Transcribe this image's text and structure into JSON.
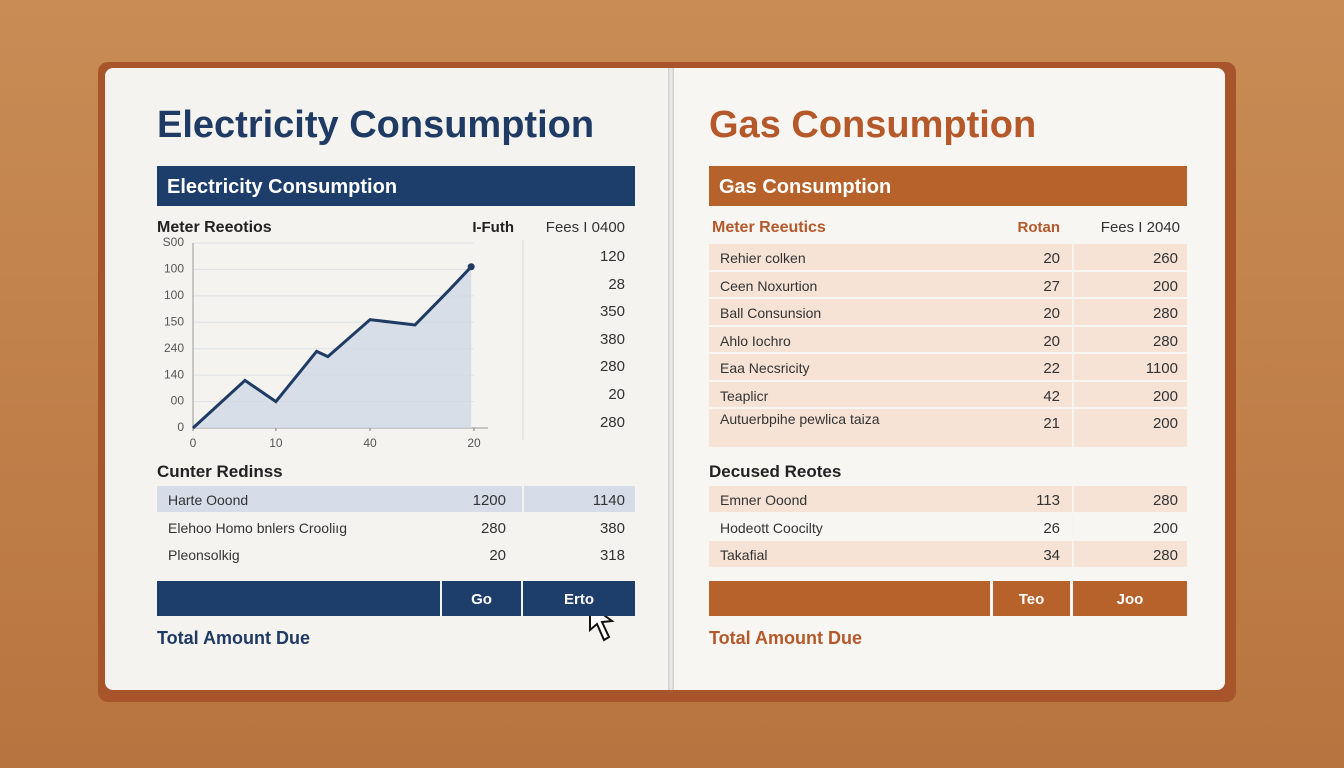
{
  "left": {
    "title": "Electricity Consumption",
    "banner": "Electricity Consumption",
    "columns": [
      "Meter Reeotios",
      "I-Futh",
      "Fees I 0400"
    ],
    "side_values": [
      120,
      28,
      350,
      380,
      280,
      20,
      280
    ],
    "section": "Cunter Redinss",
    "rows": [
      [
        "Harte Ooond",
        1200,
        1140
      ],
      [
        "Elehoo Homo bnlers Crooliıg",
        280,
        380
      ],
      [
        "Pleonsolkig",
        20,
        318
      ]
    ],
    "buttons": [
      "Go",
      "Erto"
    ],
    "total": "Total Amount Due"
  },
  "right": {
    "title": "Gas Consumption",
    "banner": "Gas Consumption",
    "columns": [
      "Meter Reeutics",
      "Rotan",
      "Fees I 2040"
    ],
    "rows": [
      [
        "Rehier colken",
        20,
        260
      ],
      [
        "Ceen Noxurtion",
        27,
        200
      ],
      [
        "Ball Consunsion",
        20,
        280
      ],
      [
        "Ahlo Iochro",
        20,
        280
      ],
      [
        "Eaa Necsricity",
        22,
        1100
      ],
      [
        "Teaplicr",
        42,
        200
      ],
      [
        "Autuerbpihe pewlica taiza",
        21,
        200
      ]
    ],
    "section": "Decused Reotes",
    "rows2": [
      [
        "Emner Ooond",
        113,
        280
      ],
      [
        "Hodeott Coocilty",
        26,
        200
      ],
      [
        "Takafial",
        34,
        280
      ]
    ],
    "buttons": [
      "Teo",
      "Joo"
    ],
    "total": "Total Amount Due"
  },
  "chart_data": {
    "type": "line",
    "color": "#1f3b63",
    "fill": "#cfd8e6",
    "grid": true,
    "x": [
      0,
      1.85,
      2.95,
      4.4,
      4.8,
      6.3,
      7.9,
      9.1,
      9.9
    ],
    "values": [
      0,
      1.8,
      1.0,
      2.9,
      2.7,
      4.1,
      3.9,
      5.2,
      6.1
    ],
    "xlim": [
      0,
      10
    ],
    "ylim": [
      0,
      7
    ],
    "xticks": [
      {
        "value": 0,
        "label": "0"
      },
      {
        "value": 2.95,
        "label": "10"
      },
      {
        "value": 6.3,
        "label": "40"
      },
      {
        "value": 10,
        "label": "20"
      }
    ],
    "yticks": [
      {
        "value": 0,
        "label": "0"
      },
      {
        "value": 1,
        "label": "00"
      },
      {
        "value": 2,
        "label": "140"
      },
      {
        "value": 3,
        "label": "240"
      },
      {
        "value": 4,
        "label": "150"
      },
      {
        "value": 5,
        "label": "100"
      },
      {
        "value": 6,
        "label": "100"
      },
      {
        "value": 7,
        "label": "S00"
      }
    ]
  }
}
